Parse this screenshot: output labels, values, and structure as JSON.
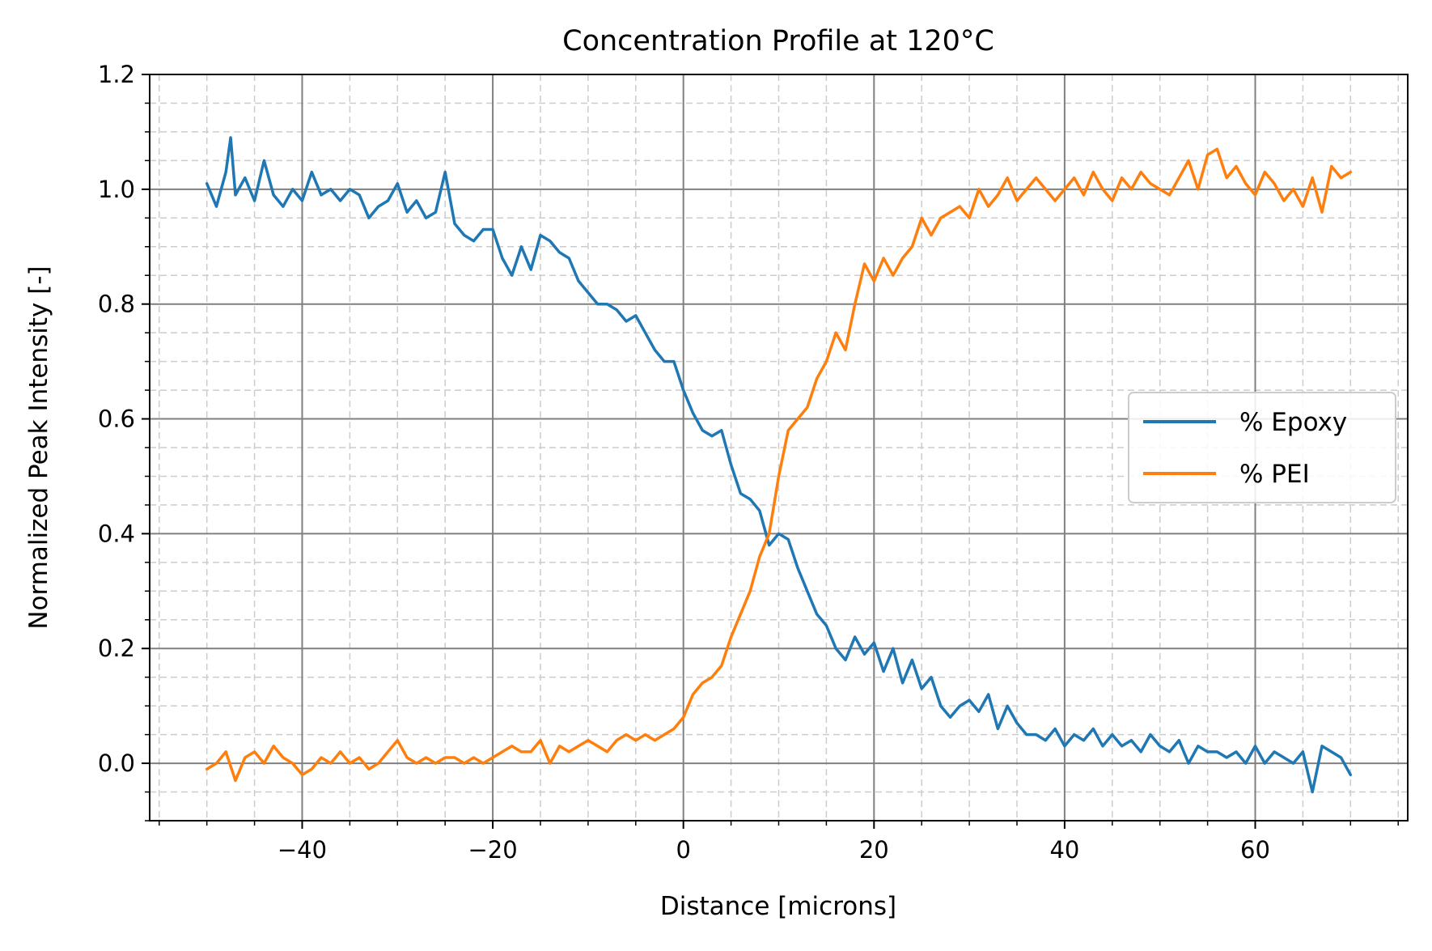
{
  "chart_data": {
    "type": "line",
    "title": "Concentration Profile at 120°C",
    "xlabel": "Distance [microns]",
    "ylabel": "Normalized Peak Intensity [-]",
    "xlim": [
      -56,
      76
    ],
    "ylim": [
      -0.1,
      1.2
    ],
    "x_ticks": [
      -40,
      -20,
      0,
      20,
      40,
      60
    ],
    "x_tick_labels": [
      "−40",
      "−20",
      "0",
      "20",
      "40",
      "60"
    ],
    "y_ticks": [
      0.0,
      0.2,
      0.4,
      0.6,
      0.8,
      1.0,
      1.2
    ],
    "y_tick_labels": [
      "0.0",
      "0.2",
      "0.4",
      "0.6",
      "0.8",
      "1.0",
      "1.2"
    ],
    "grid": "major solid and minor dashed",
    "legend_position": "center-right",
    "series": [
      {
        "name": "% Epoxy",
        "color": "#1f77b4",
        "x": [
          -50,
          -49,
          -48,
          -47.5,
          -47,
          -46,
          -45,
          -44,
          -43,
          -42,
          -41,
          -40,
          -39,
          -38,
          -37,
          -36,
          -35,
          -34,
          -33,
          -32,
          -31,
          -30,
          -29,
          -28,
          -27,
          -26,
          -25,
          -24,
          -23,
          -22,
          -21,
          -20,
          -19,
          -18,
          -17,
          -16,
          -15,
          -14,
          -13,
          -12,
          -11,
          -10,
          -9,
          -8,
          -7,
          -6,
          -5,
          -4,
          -3,
          -2,
          -1,
          0,
          1,
          2,
          3,
          4,
          5,
          6,
          7,
          8,
          9,
          10,
          11,
          12,
          13,
          14,
          15,
          16,
          17,
          18,
          19,
          20,
          21,
          22,
          23,
          24,
          25,
          26,
          27,
          28,
          29,
          30,
          31,
          32,
          33,
          34,
          35,
          36,
          37,
          38,
          39,
          40,
          41,
          42,
          43,
          44,
          45,
          46,
          47,
          48,
          49,
          50,
          51,
          52,
          53,
          54,
          55,
          56,
          57,
          58,
          59,
          60,
          61,
          62,
          63,
          64,
          65,
          66,
          67,
          68,
          69,
          70
        ],
        "y": [
          1.01,
          0.97,
          1.03,
          1.09,
          0.99,
          1.02,
          0.98,
          1.05,
          0.99,
          0.97,
          1.0,
          0.98,
          1.03,
          0.99,
          1.0,
          0.98,
          1.0,
          0.99,
          0.95,
          0.97,
          0.98,
          1.01,
          0.96,
          0.98,
          0.95,
          0.96,
          1.03,
          0.94,
          0.92,
          0.91,
          0.93,
          0.93,
          0.88,
          0.85,
          0.9,
          0.86,
          0.92,
          0.91,
          0.89,
          0.88,
          0.84,
          0.82,
          0.8,
          0.8,
          0.79,
          0.77,
          0.78,
          0.75,
          0.72,
          0.7,
          0.7,
          0.65,
          0.61,
          0.58,
          0.57,
          0.58,
          0.52,
          0.47,
          0.46,
          0.44,
          0.38,
          0.4,
          0.39,
          0.34,
          0.3,
          0.26,
          0.24,
          0.2,
          0.18,
          0.22,
          0.19,
          0.21,
          0.16,
          0.2,
          0.14,
          0.18,
          0.13,
          0.15,
          0.1,
          0.08,
          0.1,
          0.11,
          0.09,
          0.12,
          0.06,
          0.1,
          0.07,
          0.05,
          0.05,
          0.04,
          0.06,
          0.03,
          0.05,
          0.04,
          0.06,
          0.03,
          0.05,
          0.03,
          0.04,
          0.02,
          0.05,
          0.03,
          0.02,
          0.04,
          0.0,
          0.03,
          0.02,
          0.02,
          0.01,
          0.02,
          0.0,
          0.03,
          0.0,
          0.02,
          0.01,
          0.0,
          0.02,
          -0.05,
          0.03,
          0.02,
          0.01,
          -0.02
        ]
      },
      {
        "name": "% PEI",
        "color": "#ff7f0e",
        "x": [
          -50,
          -49,
          -48,
          -47,
          -46,
          -45,
          -44,
          -43,
          -42,
          -41,
          -40,
          -39,
          -38,
          -37,
          -36,
          -35,
          -34,
          -33,
          -32,
          -31,
          -30,
          -29,
          -28,
          -27,
          -26,
          -25,
          -24,
          -23,
          -22,
          -21,
          -20,
          -19,
          -18,
          -17,
          -16,
          -15,
          -14,
          -13,
          -12,
          -11,
          -10,
          -9,
          -8,
          -7,
          -6,
          -5,
          -4,
          -3,
          -2,
          -1,
          0,
          1,
          2,
          3,
          4,
          5,
          6,
          7,
          8,
          9,
          10,
          11,
          12,
          13,
          14,
          15,
          16,
          17,
          18,
          19,
          20,
          21,
          22,
          23,
          24,
          25,
          26,
          27,
          28,
          29,
          30,
          31,
          32,
          33,
          34,
          35,
          36,
          37,
          38,
          39,
          40,
          41,
          42,
          43,
          44,
          45,
          46,
          47,
          48,
          49,
          50,
          51,
          52,
          53,
          54,
          55,
          56,
          57,
          58,
          59,
          60,
          61,
          62,
          63,
          64,
          65,
          66,
          67,
          68,
          69,
          70
        ],
        "y": [
          -0.01,
          0.0,
          0.02,
          -0.03,
          0.01,
          0.02,
          0.0,
          0.03,
          0.01,
          0.0,
          -0.02,
          -0.01,
          0.01,
          0.0,
          0.02,
          0.0,
          0.01,
          -0.01,
          0.0,
          0.02,
          0.04,
          0.01,
          0.0,
          0.01,
          0.0,
          0.01,
          0.01,
          0.0,
          0.01,
          0.0,
          0.01,
          0.02,
          0.03,
          0.02,
          0.02,
          0.04,
          0.0,
          0.03,
          0.02,
          0.03,
          0.04,
          0.03,
          0.02,
          0.04,
          0.05,
          0.04,
          0.05,
          0.04,
          0.05,
          0.06,
          0.08,
          0.12,
          0.14,
          0.15,
          0.17,
          0.22,
          0.26,
          0.3,
          0.36,
          0.4,
          0.5,
          0.58,
          0.6,
          0.62,
          0.67,
          0.7,
          0.75,
          0.72,
          0.8,
          0.87,
          0.84,
          0.88,
          0.85,
          0.88,
          0.9,
          0.95,
          0.92,
          0.95,
          0.96,
          0.97,
          0.95,
          1.0,
          0.97,
          0.99,
          1.02,
          0.98,
          1.0,
          1.02,
          1.0,
          0.98,
          1.0,
          1.02,
          0.99,
          1.03,
          1.0,
          0.98,
          1.02,
          1.0,
          1.03,
          1.01,
          1.0,
          0.99,
          1.02,
          1.05,
          1.0,
          1.06,
          1.07,
          1.02,
          1.04,
          1.01,
          0.99,
          1.03,
          1.01,
          0.98,
          1.0,
          0.97,
          1.02,
          0.96,
          1.04,
          1.02,
          1.03
        ]
      }
    ]
  }
}
